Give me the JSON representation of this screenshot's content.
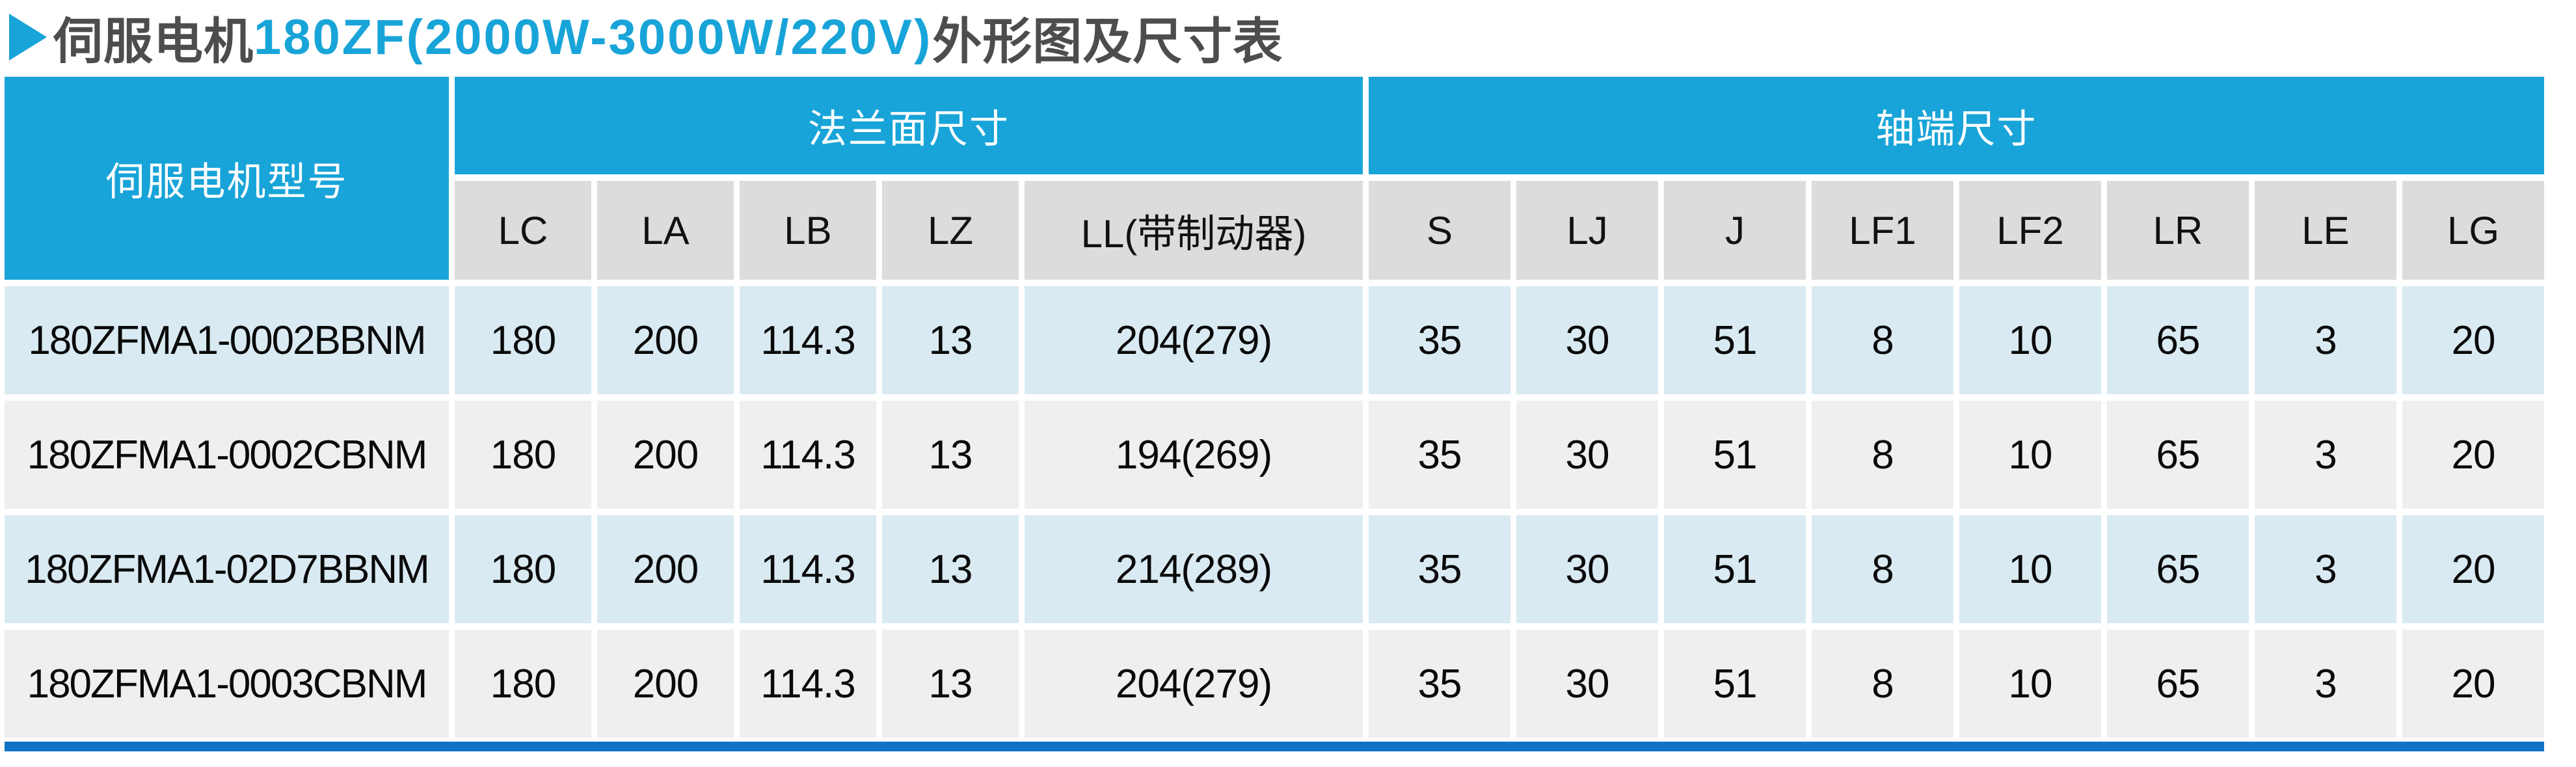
{
  "title": {
    "marker_icon": "right-triangle",
    "prefix": "伺服电机",
    "highlight": "180ZF(2000W-3000W/220V)",
    "suffix": "外形图及尺寸表"
  },
  "colors": {
    "accent_blue": "#18a4d8",
    "bottom_bar_blue": "#1173c4",
    "subheader_gray": "#dcdcdc",
    "row_light_blue": "#d9eaf2",
    "row_light_gray": "#efefef",
    "title_text_gray": "#4d4d4d"
  },
  "table": {
    "model_header": "伺服电机型号",
    "groups": [
      {
        "label": "法兰面尺寸",
        "columns": 5
      },
      {
        "label": "轴端尺寸",
        "columns": 8
      }
    ],
    "columns": [
      "LC",
      "LA",
      "LB",
      "LZ",
      "LL(带制动器)",
      "S",
      "LJ",
      "J",
      "LF1",
      "LF2",
      "LR",
      "LE",
      "LG"
    ],
    "rows": [
      {
        "model": "180ZFMA1-0002BBNM",
        "values": [
          "180",
          "200",
          "114.3",
          "13",
          "204(279)",
          "35",
          "30",
          "51",
          "8",
          "10",
          "65",
          "3",
          "20"
        ]
      },
      {
        "model": "180ZFMA1-0002CBNM",
        "values": [
          "180",
          "200",
          "114.3",
          "13",
          "194(269)",
          "35",
          "30",
          "51",
          "8",
          "10",
          "65",
          "3",
          "20"
        ]
      },
      {
        "model": "180ZFMA1-02D7BBNM",
        "values": [
          "180",
          "200",
          "114.3",
          "13",
          "214(289)",
          "35",
          "30",
          "51",
          "8",
          "10",
          "65",
          "3",
          "20"
        ]
      },
      {
        "model": "180ZFMA1-0003CBNM",
        "values": [
          "180",
          "200",
          "114.3",
          "13",
          "204(279)",
          "35",
          "30",
          "51",
          "8",
          "10",
          "65",
          "3",
          "20"
        ]
      }
    ]
  }
}
